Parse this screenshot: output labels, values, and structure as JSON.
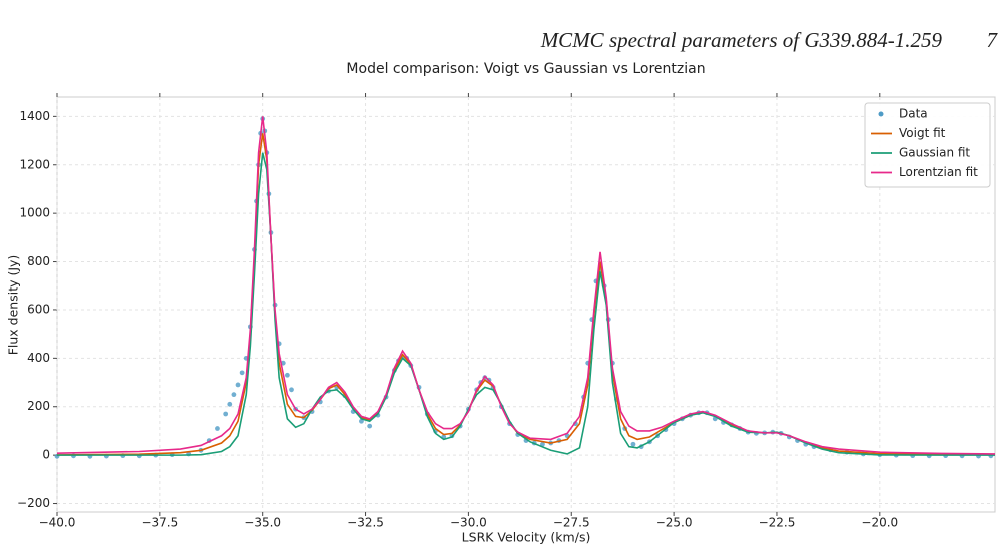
{
  "header": {
    "title": "MCMC spectral parameters of G339.884-1.259",
    "page": "7"
  },
  "chart_data": {
    "type": "line",
    "title": "Model comparison: Voigt vs Gaussian vs Lorentzian",
    "xlabel": "LSRK Velocity (km/s)",
    "ylabel": "Flux density (Jy)",
    "xlim": [
      -40,
      -17.2
    ],
    "ylim": [
      -235,
      1480
    ],
    "xticks": [
      {
        "value": -40,
        "label": "−40.0"
      },
      {
        "value": -37.5,
        "label": "−37.5"
      },
      {
        "value": -35,
        "label": "−35.0"
      },
      {
        "value": -32.5,
        "label": "−32.5"
      },
      {
        "value": -30,
        "label": "−30.0"
      },
      {
        "value": -27.5,
        "label": "−27.5"
      },
      {
        "value": -25,
        "label": "−25.0"
      },
      {
        "value": -22.5,
        "label": "−22.5"
      },
      {
        "value": -20,
        "label": "−20.0"
      }
    ],
    "yticks": [
      {
        "value": -200,
        "label": "−200"
      },
      0,
      200,
      400,
      600,
      800,
      1000,
      1200,
      1400
    ],
    "grid": true,
    "legend": "upper right",
    "x": [
      -40,
      -38,
      -37,
      -36.5,
      -36,
      -35.8,
      -35.6,
      -35.4,
      -35.3,
      -35.2,
      -35.1,
      -35.0,
      -34.9,
      -34.8,
      -34.7,
      -34.6,
      -34.4,
      -34.2,
      -34.0,
      -33.8,
      -33.6,
      -33.4,
      -33.2,
      -33.0,
      -32.8,
      -32.6,
      -32.4,
      -32.2,
      -32.0,
      -31.8,
      -31.6,
      -31.4,
      -31.2,
      -31.0,
      -30.8,
      -30.6,
      -30.4,
      -30.2,
      -30.0,
      -29.8,
      -29.6,
      -29.4,
      -29.2,
      -29.0,
      -28.8,
      -28.5,
      -28.0,
      -27.6,
      -27.3,
      -27.1,
      -26.95,
      -26.8,
      -26.65,
      -26.5,
      -26.3,
      -26.1,
      -25.9,
      -25.6,
      -25.3,
      -25.0,
      -24.6,
      -24.3,
      -24.0,
      -23.6,
      -23.2,
      -22.8,
      -22.5,
      -22.2,
      -21.8,
      -21.4,
      -21.0,
      -20.0,
      -18.5,
      -17.2
    ],
    "series": [
      {
        "name": "Data",
        "type": "scatter",
        "color": "#4e9bc6",
        "x": [
          -40,
          -39.6,
          -39.2,
          -38.8,
          -38.4,
          -38.0,
          -37.6,
          -37.2,
          -36.8,
          -36.5,
          -36.3,
          -36.1,
          -35.9,
          -35.8,
          -35.7,
          -35.6,
          -35.5,
          -35.4,
          -35.3,
          -35.2,
          -35.15,
          -35.1,
          -35.05,
          -35.0,
          -34.95,
          -34.9,
          -34.85,
          -34.8,
          -34.7,
          -34.6,
          -34.5,
          -34.4,
          -34.3,
          -34.2,
          -34.0,
          -33.8,
          -33.6,
          -33.4,
          -33.2,
          -33.0,
          -32.8,
          -32.6,
          -32.4,
          -32.2,
          -32.0,
          -31.8,
          -31.7,
          -31.6,
          -31.5,
          -31.4,
          -31.2,
          -31.0,
          -30.8,
          -30.6,
          -30.4,
          -30.2,
          -30.0,
          -29.8,
          -29.7,
          -29.6,
          -29.5,
          -29.4,
          -29.2,
          -29.0,
          -28.8,
          -28.6,
          -28.4,
          -28.2,
          -28.0,
          -27.8,
          -27.6,
          -27.4,
          -27.2,
          -27.1,
          -27.0,
          -26.9,
          -26.8,
          -26.7,
          -26.6,
          -26.5,
          -26.4,
          -26.2,
          -26.0,
          -25.8,
          -25.6,
          -25.4,
          -25.2,
          -25.0,
          -24.8,
          -24.6,
          -24.4,
          -24.2,
          -24.0,
          -23.8,
          -23.6,
          -23.4,
          -23.2,
          -23.0,
          -22.8,
          -22.6,
          -22.4,
          -22.2,
          -22.0,
          -21.8,
          -21.6,
          -21.2,
          -20.8,
          -20.4,
          -20.0,
          -19.6,
          -19.2,
          -18.8,
          -18.4,
          -18.0,
          -17.6,
          -17.3
        ],
        "values": [
          -5,
          -3,
          -5,
          -4,
          -2,
          -3,
          0,
          2,
          5,
          20,
          60,
          110,
          170,
          210,
          250,
          290,
          340,
          400,
          530,
          850,
          1050,
          1200,
          1330,
          1390,
          1340,
          1250,
          1080,
          920,
          620,
          460,
          380,
          330,
          270,
          190,
          155,
          180,
          220,
          265,
          280,
          245,
          180,
          140,
          120,
          165,
          240,
          350,
          390,
          405,
          400,
          370,
          280,
          170,
          100,
          75,
          80,
          120,
          190,
          270,
          300,
          320,
          310,
          280,
          200,
          130,
          85,
          60,
          50,
          45,
          50,
          60,
          80,
          130,
          240,
          380,
          560,
          720,
          770,
          700,
          560,
          380,
          230,
          110,
          45,
          35,
          55,
          80,
          105,
          130,
          150,
          165,
          175,
          175,
          150,
          135,
          125,
          110,
          95,
          90,
          92,
          95,
          90,
          75,
          60,
          45,
          35,
          22,
          12,
          5,
          2,
          0,
          -2,
          -3,
          -2,
          -3,
          -4,
          -3
        ]
      },
      {
        "name": "Voigt fit",
        "color": "#d95f02",
        "values": [
          1,
          4,
          10,
          20,
          50,
          80,
          140,
          300,
          500,
          820,
          1200,
          1330,
          1220,
          900,
          580,
          380,
          210,
          160,
          155,
          185,
          230,
          275,
          290,
          250,
          195,
          155,
          145,
          175,
          245,
          350,
          415,
          375,
          270,
          170,
          110,
          85,
          90,
          125,
          185,
          265,
          310,
          285,
          205,
          135,
          90,
          65,
          50,
          65,
          130,
          290,
          580,
          800,
          640,
          340,
          150,
          80,
          65,
          75,
          105,
          135,
          165,
          178,
          162,
          125,
          97,
          92,
          94,
          80,
          52,
          30,
          17,
          6,
          3,
          2
        ]
      },
      {
        "name": "Gaussian fit",
        "color": "#1b9e77",
        "values": [
          0,
          0,
          0,
          2,
          15,
          35,
          80,
          250,
          450,
          750,
          1080,
          1250,
          1180,
          900,
          560,
          320,
          150,
          115,
          130,
          190,
          240,
          265,
          270,
          240,
          190,
          150,
          140,
          170,
          240,
          340,
          400,
          370,
          270,
          160,
          90,
          65,
          75,
          120,
          190,
          250,
          280,
          270,
          210,
          140,
          90,
          55,
          20,
          5,
          30,
          200,
          520,
          760,
          620,
          300,
          90,
          35,
          30,
          55,
          95,
          135,
          165,
          175,
          160,
          120,
          95,
          92,
          95,
          80,
          50,
          25,
          10,
          1,
          0,
          0
        ]
      },
      {
        "name": "Lorentzian fit",
        "color": "#e7298a",
        "values": [
          8,
          15,
          25,
          40,
          80,
          110,
          170,
          320,
          520,
          850,
          1250,
          1400,
          1250,
          900,
          600,
          420,
          250,
          190,
          170,
          190,
          230,
          280,
          300,
          260,
          200,
          160,
          150,
          180,
          250,
          360,
          430,
          380,
          270,
          180,
          130,
          110,
          110,
          130,
          180,
          270,
          325,
          290,
          200,
          130,
          95,
          70,
          65,
          90,
          160,
          320,
          600,
          840,
          650,
          360,
          180,
          120,
          100,
          100,
          115,
          140,
          170,
          180,
          165,
          130,
          100,
          92,
          92,
          80,
          55,
          35,
          25,
          12,
          7,
          5
        ]
      }
    ]
  }
}
